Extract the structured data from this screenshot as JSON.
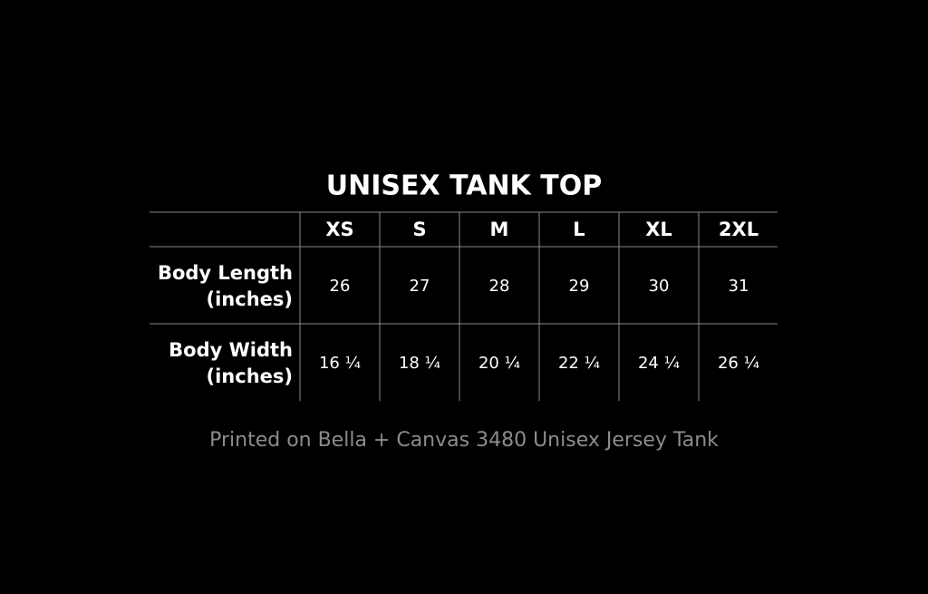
{
  "title": "UNISEX TANK TOP",
  "table": {
    "headers": [
      "XS",
      "S",
      "M",
      "L",
      "XL",
      "2XL"
    ],
    "rows": [
      {
        "label": [
          "Body Length",
          "(inches)"
        ],
        "cells": [
          "26",
          "27",
          "28",
          "29",
          "30",
          "31"
        ]
      },
      {
        "label": [
          "Body Width",
          "(inches)"
        ],
        "cells": [
          "16 ¼",
          "18 ¼",
          "20 ¼",
          "22 ¼",
          "24 ¼",
          "26 ¼"
        ]
      }
    ]
  },
  "caption": "Printed on Bella + Canvas 3480 Unisex Jersey Tank"
}
